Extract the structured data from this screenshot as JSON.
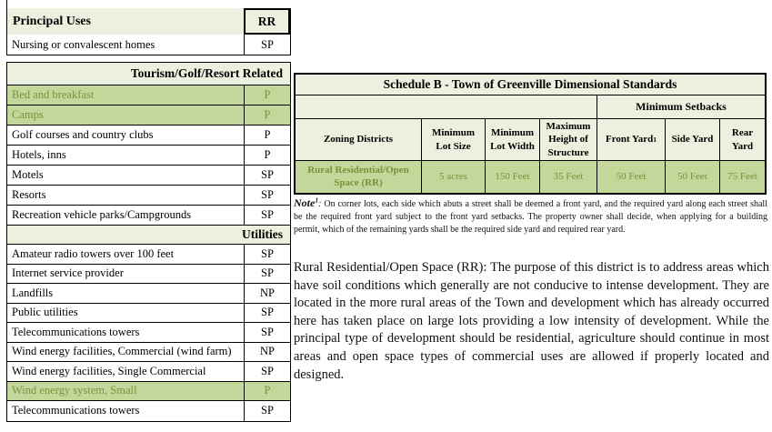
{
  "use_table": {
    "header": {
      "label": "Principal Uses",
      "value": "RR"
    },
    "top_rows": [
      {
        "label": "Nursing or convalescent homes",
        "value": "SP"
      }
    ],
    "sections": [
      {
        "title": "Tourism/Golf/Resort Related",
        "rows": [
          {
            "label": "Bed and breakfast",
            "value": "P"
          },
          {
            "label": "Camps",
            "value": "P"
          },
          {
            "label": "Golf courses and country clubs",
            "value": "P"
          },
          {
            "label": "Hotels, inns",
            "value": "P"
          },
          {
            "label": "Motels",
            "value": "SP"
          },
          {
            "label": "Resorts",
            "value": "SP"
          },
          {
            "label": "Recreation vehicle parks/Campgrounds",
            "value": "SP"
          }
        ]
      },
      {
        "title": "Utilities",
        "rows": [
          {
            "label": "Amateur radio towers over 100 feet",
            "value": "SP"
          },
          {
            "label": "Internet service provider",
            "value": "SP"
          },
          {
            "label": "Landfills",
            "value": "NP"
          },
          {
            "label": "Public utilities",
            "value": "SP"
          },
          {
            "label": "Telecommunications towers",
            "value": "SP"
          },
          {
            "label": "Wind energy facilities, Commercial (wind farm)",
            "value": "NP"
          },
          {
            "label": "Wind energy facilities, Single Commercial",
            "value": "SP"
          },
          {
            "label": "Wind energy system, Small",
            "value": "P"
          },
          {
            "label": "Telecommunications towers",
            "value": "SP"
          }
        ]
      }
    ]
  },
  "schedule_table": {
    "title": "Schedule B - Town of Greenville Dimensional Standards",
    "setbacks_header": "Minimum Setbacks",
    "columns": [
      "Zoning Districts",
      "Minimum Lot Size",
      "Minimum Lot Width",
      "Maximum Height of Structure",
      "Front Yard",
      "Side Yard",
      "Rear Yard"
    ],
    "front_yard_sup": "1",
    "row": {
      "district": "Rural Residential/Open Space (RR)",
      "values": [
        "5 acres",
        "150 Feet",
        "35 Feet",
        "50 Feet",
        "50 Feet",
        "75 Feet"
      ]
    }
  },
  "note": {
    "label": "Note",
    "sup": "1",
    "colon": ": ",
    "body": "On corner lots, each side which abuts a street shall be deemed a front yard, and the required yard along each street shall be the required front yard subject to the front yard setbacks.  The property owner shall decide, when applying for a building permit, which of the remaining yards shall be the required side yard and required rear yard."
  },
  "description": "Rural Residential/Open Space (RR): The purpose of this district is to address areas which have soil conditions which generally are not conducive to intense development.  They are located in the more rural areas of the Town and development which has already occurred here has taken place on large lots providing a low intensity of development.  While the principal type of development should be residential, agriculture should continue in most areas and open space types of commercial uses are allowed if properly located and designed.",
  "colors": {
    "highlight_row_green": "#C4D79B",
    "header_band_green": "#ECF1DF",
    "highlight_text_green": "#77933C",
    "border": "#000000"
  }
}
